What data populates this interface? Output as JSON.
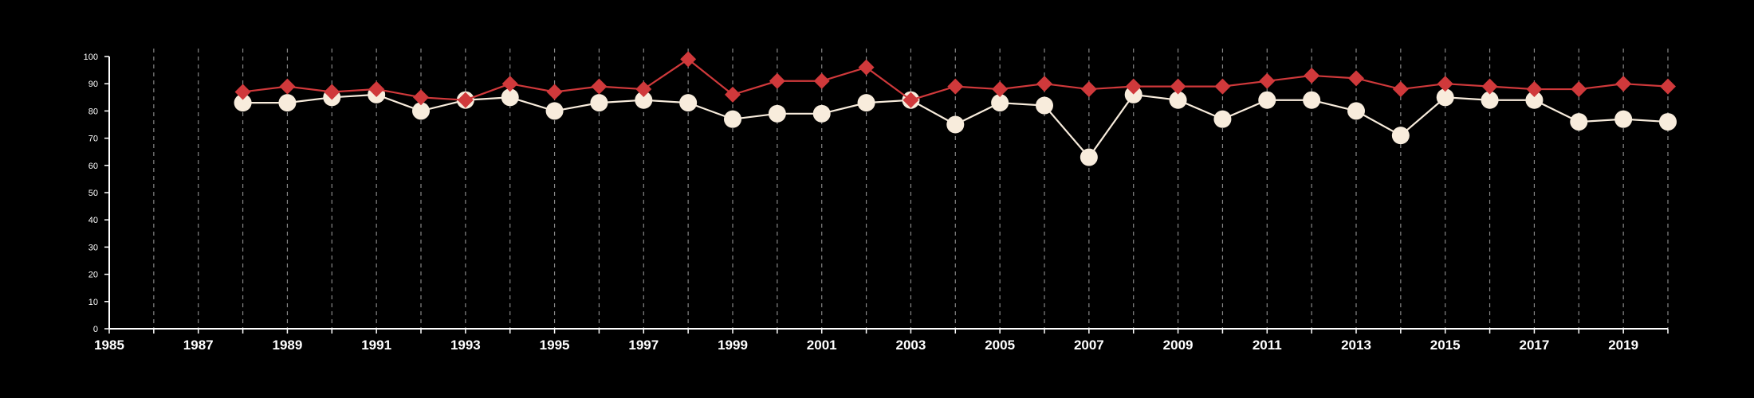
{
  "chart_data": {
    "type": "line",
    "title": "",
    "xlabel": "",
    "ylabel": "",
    "xlim": [
      1985,
      2020
    ],
    "ylim": [
      0,
      100
    ],
    "x_ticks": [
      "1985",
      "1987",
      "1989",
      "1991",
      "1993",
      "1995",
      "1997",
      "1999",
      "2001",
      "2003",
      "2005",
      "2007",
      "2009",
      "2011",
      "2013",
      "2015",
      "2017",
      "2019"
    ],
    "y_ticks": [
      "0",
      "10",
      "20",
      "30",
      "40",
      "50",
      "60",
      "70",
      "80",
      "90",
      "100"
    ],
    "grid": "vertical dashed at each year",
    "x": [
      1988,
      1989,
      1990,
      1991,
      1992,
      1993,
      1994,
      1995,
      1996,
      1997,
      1998,
      1999,
      2000,
      2001,
      2002,
      2003,
      2004,
      2005,
      2006,
      2007,
      2008,
      2009,
      2010,
      2011,
      2012,
      2013,
      2014,
      2015,
      2016,
      2017,
      2018,
      2019,
      2020
    ],
    "series": [
      {
        "color": "#d0393b",
        "marker": "diamond",
        "values": [
          87,
          89,
          87,
          88,
          85,
          84,
          90,
          87,
          89,
          88,
          99,
          86,
          91,
          91,
          96,
          84,
          89,
          88,
          90,
          88,
          89,
          89,
          89,
          91,
          93,
          92,
          88,
          90,
          89,
          88,
          88,
          90,
          89
        ]
      },
      {
        "color": "#f8ecdc",
        "marker": "circle",
        "values": [
          83,
          83,
          85,
          86,
          80,
          84,
          85,
          80,
          83,
          84,
          83,
          77,
          79,
          79,
          83,
          84,
          75,
          83,
          82,
          63,
          86,
          84,
          77,
          84,
          84,
          80,
          71,
          85,
          84,
          84,
          76,
          77,
          76
        ]
      }
    ]
  },
  "colors": {
    "background": "#000000",
    "axis": "#ffffff",
    "grid": "#888888"
  }
}
